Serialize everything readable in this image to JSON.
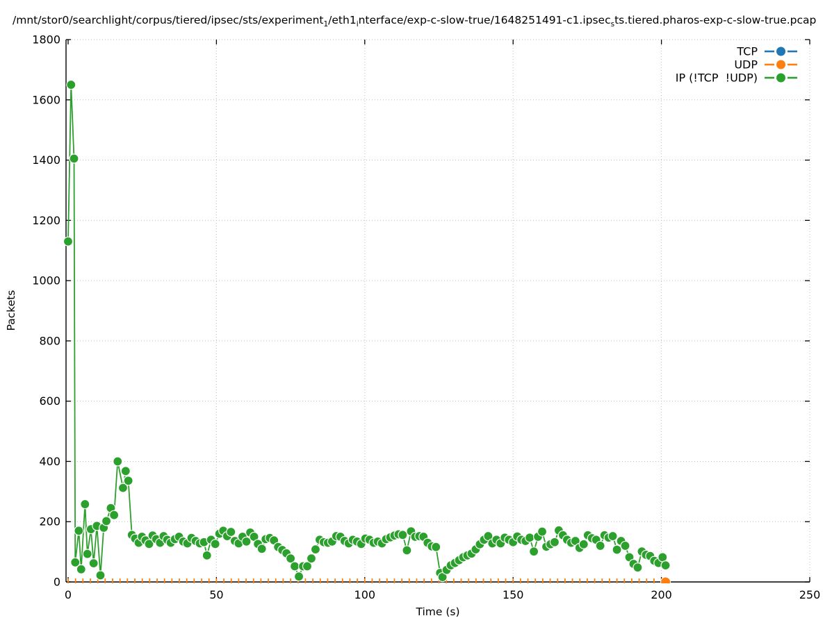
{
  "title": {
    "parts": [
      {
        "text": "/mnt/stor0/searchlight/corpus/tiered/ipsec/sts/experiment"
      },
      {
        "sub": "1"
      },
      {
        "text": "/eth1"
      },
      {
        "sub": "i"
      },
      {
        "text": "nterface/exp-c-slow-true/1648251491-c1.ipsec"
      },
      {
        "sub": "s"
      },
      {
        "text": "ts.tiered.pharos-exp-c-slow-true.pcap"
      }
    ]
  },
  "axes": {
    "xlabel": "Time (s)",
    "ylabel": "Packets",
    "xticks": [
      0,
      50,
      100,
      150,
      200,
      250
    ],
    "yticks": [
      0,
      200,
      400,
      600,
      800,
      1000,
      1200,
      1400,
      1600,
      1800
    ],
    "x_range": [
      -0.7,
      250
    ],
    "y_range": [
      0,
      1800
    ],
    "grid": "dotted"
  },
  "legend": {
    "position": "top-right-inside",
    "entries": [
      {
        "label": "TCP",
        "color": "#1f77b4"
      },
      {
        "label": "UDP",
        "color": "#ff7f0e"
      },
      {
        "label": "IP (!TCP  !UDP)",
        "color": "#2ca02c"
      }
    ]
  },
  "chart_data": {
    "type": "line",
    "xlabel": "Time (s)",
    "ylabel": "Packets",
    "xlim": [
      -0.7,
      250
    ],
    "ylim": [
      0,
      1800
    ],
    "grid": true,
    "series": [
      {
        "name": "TCP",
        "color": "#1f77b4",
        "marker": "circle",
        "points": [],
        "note_visible": "no visible data points on plot"
      },
      {
        "name": "UDP",
        "color": "#ff7f0e",
        "marker": "vdash",
        "const_y": 0,
        "x_from": 0,
        "x_to": 200,
        "x_step": 2.5,
        "last_point": [
          201.4,
          0
        ]
      },
      {
        "name": "IP (!TCP !UDP)",
        "color": "#2ca02c",
        "marker": "circle",
        "points": [
          [
            0,
            1130
          ],
          [
            1,
            1650
          ],
          [
            2,
            1405
          ],
          [
            2.4,
            65
          ],
          [
            3.6,
            170
          ],
          [
            4.4,
            42
          ],
          [
            5.7,
            258
          ],
          [
            6.5,
            93
          ],
          [
            7.7,
            175
          ],
          [
            8.6,
            62
          ],
          [
            9.7,
            186
          ],
          [
            10.9,
            22
          ],
          [
            12,
            180
          ],
          [
            12.9,
            202
          ],
          [
            14.4,
            245
          ],
          [
            15.5,
            222
          ],
          [
            16.7,
            400
          ],
          [
            18.5,
            312
          ],
          [
            19.4,
            368
          ],
          [
            20.3,
            336
          ],
          [
            21.5,
            156
          ],
          [
            22.6,
            144
          ],
          [
            23.8,
            130
          ],
          [
            24.9,
            150
          ],
          [
            26.1,
            138
          ],
          [
            27.3,
            126
          ],
          [
            28.5,
            154
          ],
          [
            29.7,
            142
          ],
          [
            31,
            130
          ],
          [
            32.2,
            152
          ],
          [
            33.4,
            140
          ],
          [
            34.6,
            130
          ],
          [
            36,
            142
          ],
          [
            37.4,
            150
          ],
          [
            38.8,
            134
          ],
          [
            40.2,
            128
          ],
          [
            41.6,
            146
          ],
          [
            43,
            136
          ],
          [
            44.4,
            128
          ],
          [
            45.8,
            132
          ],
          [
            46.8,
            88
          ],
          [
            48.2,
            140
          ],
          [
            49.6,
            126
          ],
          [
            51,
            160
          ],
          [
            52.3,
            170
          ],
          [
            53.6,
            152
          ],
          [
            54.9,
            166
          ],
          [
            56.2,
            136
          ],
          [
            57.5,
            128
          ],
          [
            58.8,
            150
          ],
          [
            60.1,
            134
          ],
          [
            61.4,
            164
          ],
          [
            62.7,
            150
          ],
          [
            64,
            126
          ],
          [
            65.3,
            110
          ],
          [
            66.6,
            142
          ],
          [
            68,
            146
          ],
          [
            69.4,
            138
          ],
          [
            70.8,
            116
          ],
          [
            72.2,
            106
          ],
          [
            73.6,
            95
          ],
          [
            75,
            78
          ],
          [
            76.4,
            52
          ],
          [
            77.8,
            18
          ],
          [
            79.2,
            52
          ],
          [
            80.6,
            52
          ],
          [
            82,
            78
          ],
          [
            83.4,
            108
          ],
          [
            84.8,
            140
          ],
          [
            86.2,
            132
          ],
          [
            87.6,
            130
          ],
          [
            89,
            134
          ],
          [
            90.4,
            152
          ],
          [
            91.8,
            150
          ],
          [
            93.2,
            136
          ],
          [
            94.6,
            128
          ],
          [
            96,
            140
          ],
          [
            97.4,
            134
          ],
          [
            98.8,
            126
          ],
          [
            100.2,
            144
          ],
          [
            101.6,
            140
          ],
          [
            103,
            130
          ],
          [
            104.4,
            134
          ],
          [
            105.8,
            128
          ],
          [
            107.2,
            142
          ],
          [
            108.6,
            148
          ],
          [
            110,
            154
          ],
          [
            111.4,
            158
          ],
          [
            112.8,
            156
          ],
          [
            114.2,
            105
          ],
          [
            115.6,
            168
          ],
          [
            117,
            150
          ],
          [
            118.4,
            152
          ],
          [
            119.8,
            150
          ],
          [
            121.2,
            130
          ],
          [
            122.6,
            118
          ],
          [
            124,
            116
          ],
          [
            125.4,
            30
          ],
          [
            126.2,
            16
          ],
          [
            127.6,
            40
          ],
          [
            129,
            55
          ],
          [
            130.4,
            63
          ],
          [
            131.8,
            72
          ],
          [
            133.2,
            82
          ],
          [
            134.6,
            88
          ],
          [
            136,
            94
          ],
          [
            137.4,
            108
          ],
          [
            138.8,
            125
          ],
          [
            140.2,
            140
          ],
          [
            141.6,
            152
          ],
          [
            143,
            128
          ],
          [
            144.4,
            140
          ],
          [
            145.8,
            128
          ],
          [
            147.2,
            147
          ],
          [
            148.6,
            140
          ],
          [
            150,
            132
          ],
          [
            151.4,
            151
          ],
          [
            152.8,
            140
          ],
          [
            154.2,
            136
          ],
          [
            155.6,
            147
          ],
          [
            157,
            101
          ],
          [
            158.4,
            150
          ],
          [
            159.8,
            167
          ],
          [
            161.2,
            117
          ],
          [
            162.6,
            125
          ],
          [
            164,
            132
          ],
          [
            165.4,
            171
          ],
          [
            166.8,
            155
          ],
          [
            168.2,
            140
          ],
          [
            169.6,
            130
          ],
          [
            171,
            136
          ],
          [
            172.4,
            113
          ],
          [
            173.8,
            125
          ],
          [
            175.2,
            155
          ],
          [
            176.6,
            145
          ],
          [
            178,
            140
          ],
          [
            179.4,
            120
          ],
          [
            180.8,
            155
          ],
          [
            182.2,
            147
          ],
          [
            183.6,
            152
          ],
          [
            185,
            107
          ],
          [
            186.4,
            136
          ],
          [
            187.8,
            120
          ],
          [
            189.2,
            82
          ],
          [
            190.6,
            60
          ],
          [
            192,
            48
          ],
          [
            193.4,
            101
          ],
          [
            194.8,
            90
          ],
          [
            196.2,
            86
          ],
          [
            197.6,
            70
          ],
          [
            199,
            63
          ],
          [
            200.4,
            82
          ],
          [
            201.4,
            55
          ]
        ]
      }
    ]
  },
  "style": {
    "grid_color": "#bdbdbd",
    "axis_color": "#000000",
    "background": "#ffffff"
  }
}
